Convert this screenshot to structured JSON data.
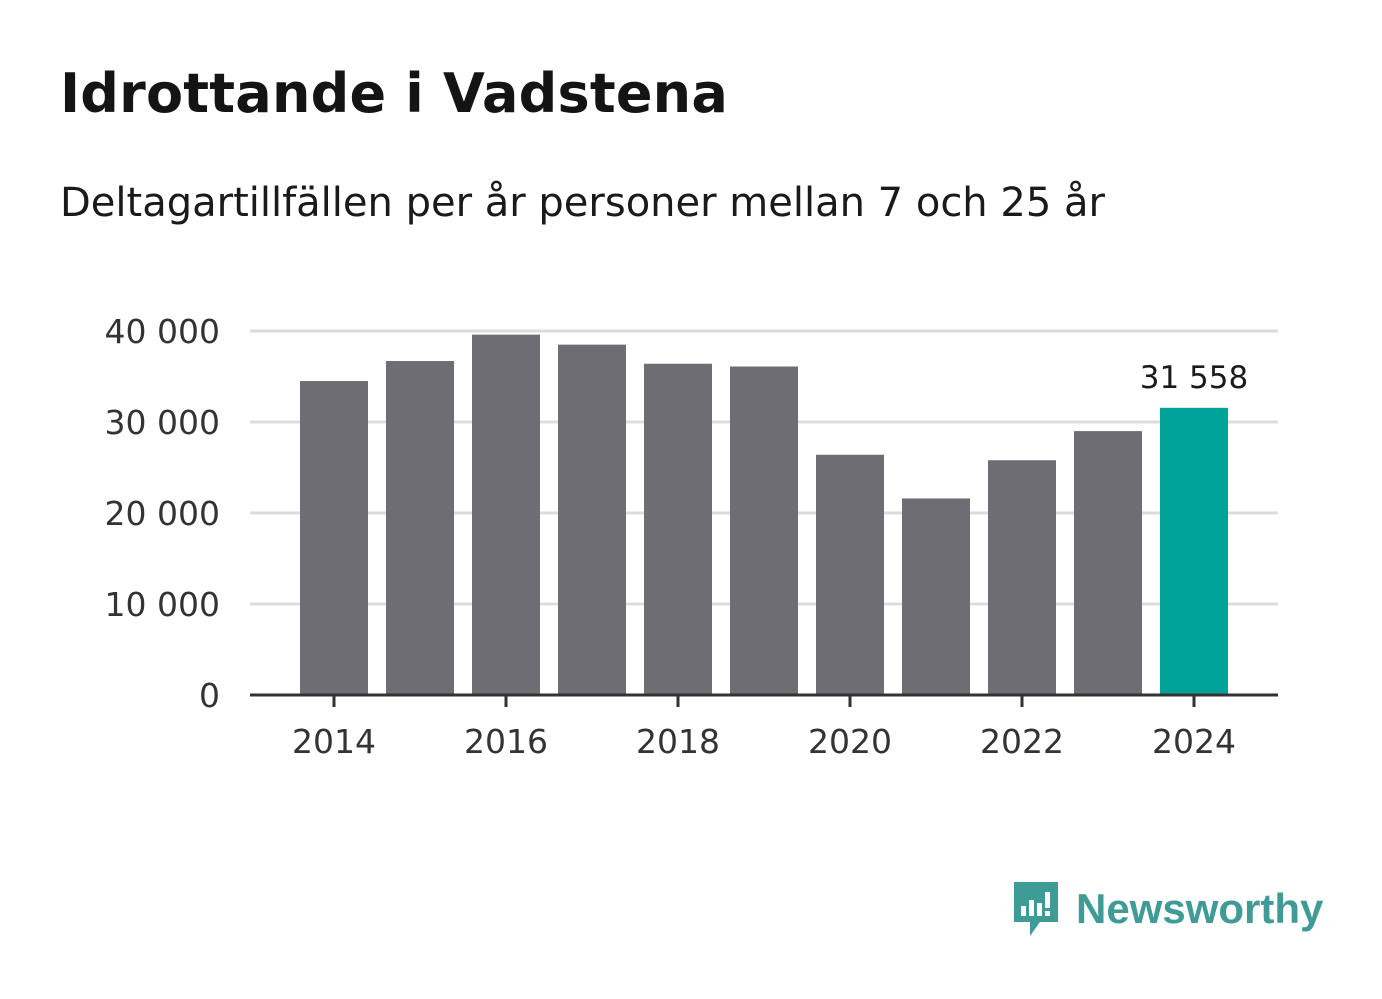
{
  "title": "Idrottande i Vadstena",
  "subtitle": "Deltagartillfällen per år personer mellan 7 och 25 år",
  "brand": {
    "name": "Newsworthy",
    "icon": "newsworthy-chat-bars-icon",
    "color": "#3f9b96"
  },
  "colors": {
    "bar": "#6e6d73",
    "highlight": "#00a397",
    "grid": "#dcdcdc",
    "axis": "#333333"
  },
  "chart_data": {
    "type": "bar",
    "title": "Idrottande i Vadstena",
    "subtitle": "Deltagartillfällen per år personer mellan 7 och 25 år",
    "xlabel": "",
    "ylabel": "",
    "ylim": [
      0,
      40000
    ],
    "grid": true,
    "categories": [
      "2014",
      "2015",
      "2016",
      "2017",
      "2018",
      "2019",
      "2020",
      "2021",
      "2022",
      "2023",
      "2024"
    ],
    "values": [
      34500,
      36700,
      39600,
      38500,
      36400,
      36100,
      26400,
      21600,
      25800,
      29000,
      31558
    ],
    "highlight_index": 10,
    "highlight_label": "31 558",
    "y_ticks": [
      0,
      10000,
      20000,
      30000,
      40000
    ],
    "y_tick_labels": [
      "0",
      "10 000",
      "20 000",
      "30 000",
      "40 000"
    ],
    "x_tick_labels": [
      "2014",
      "2016",
      "2018",
      "2020",
      "2022",
      "2024"
    ]
  }
}
